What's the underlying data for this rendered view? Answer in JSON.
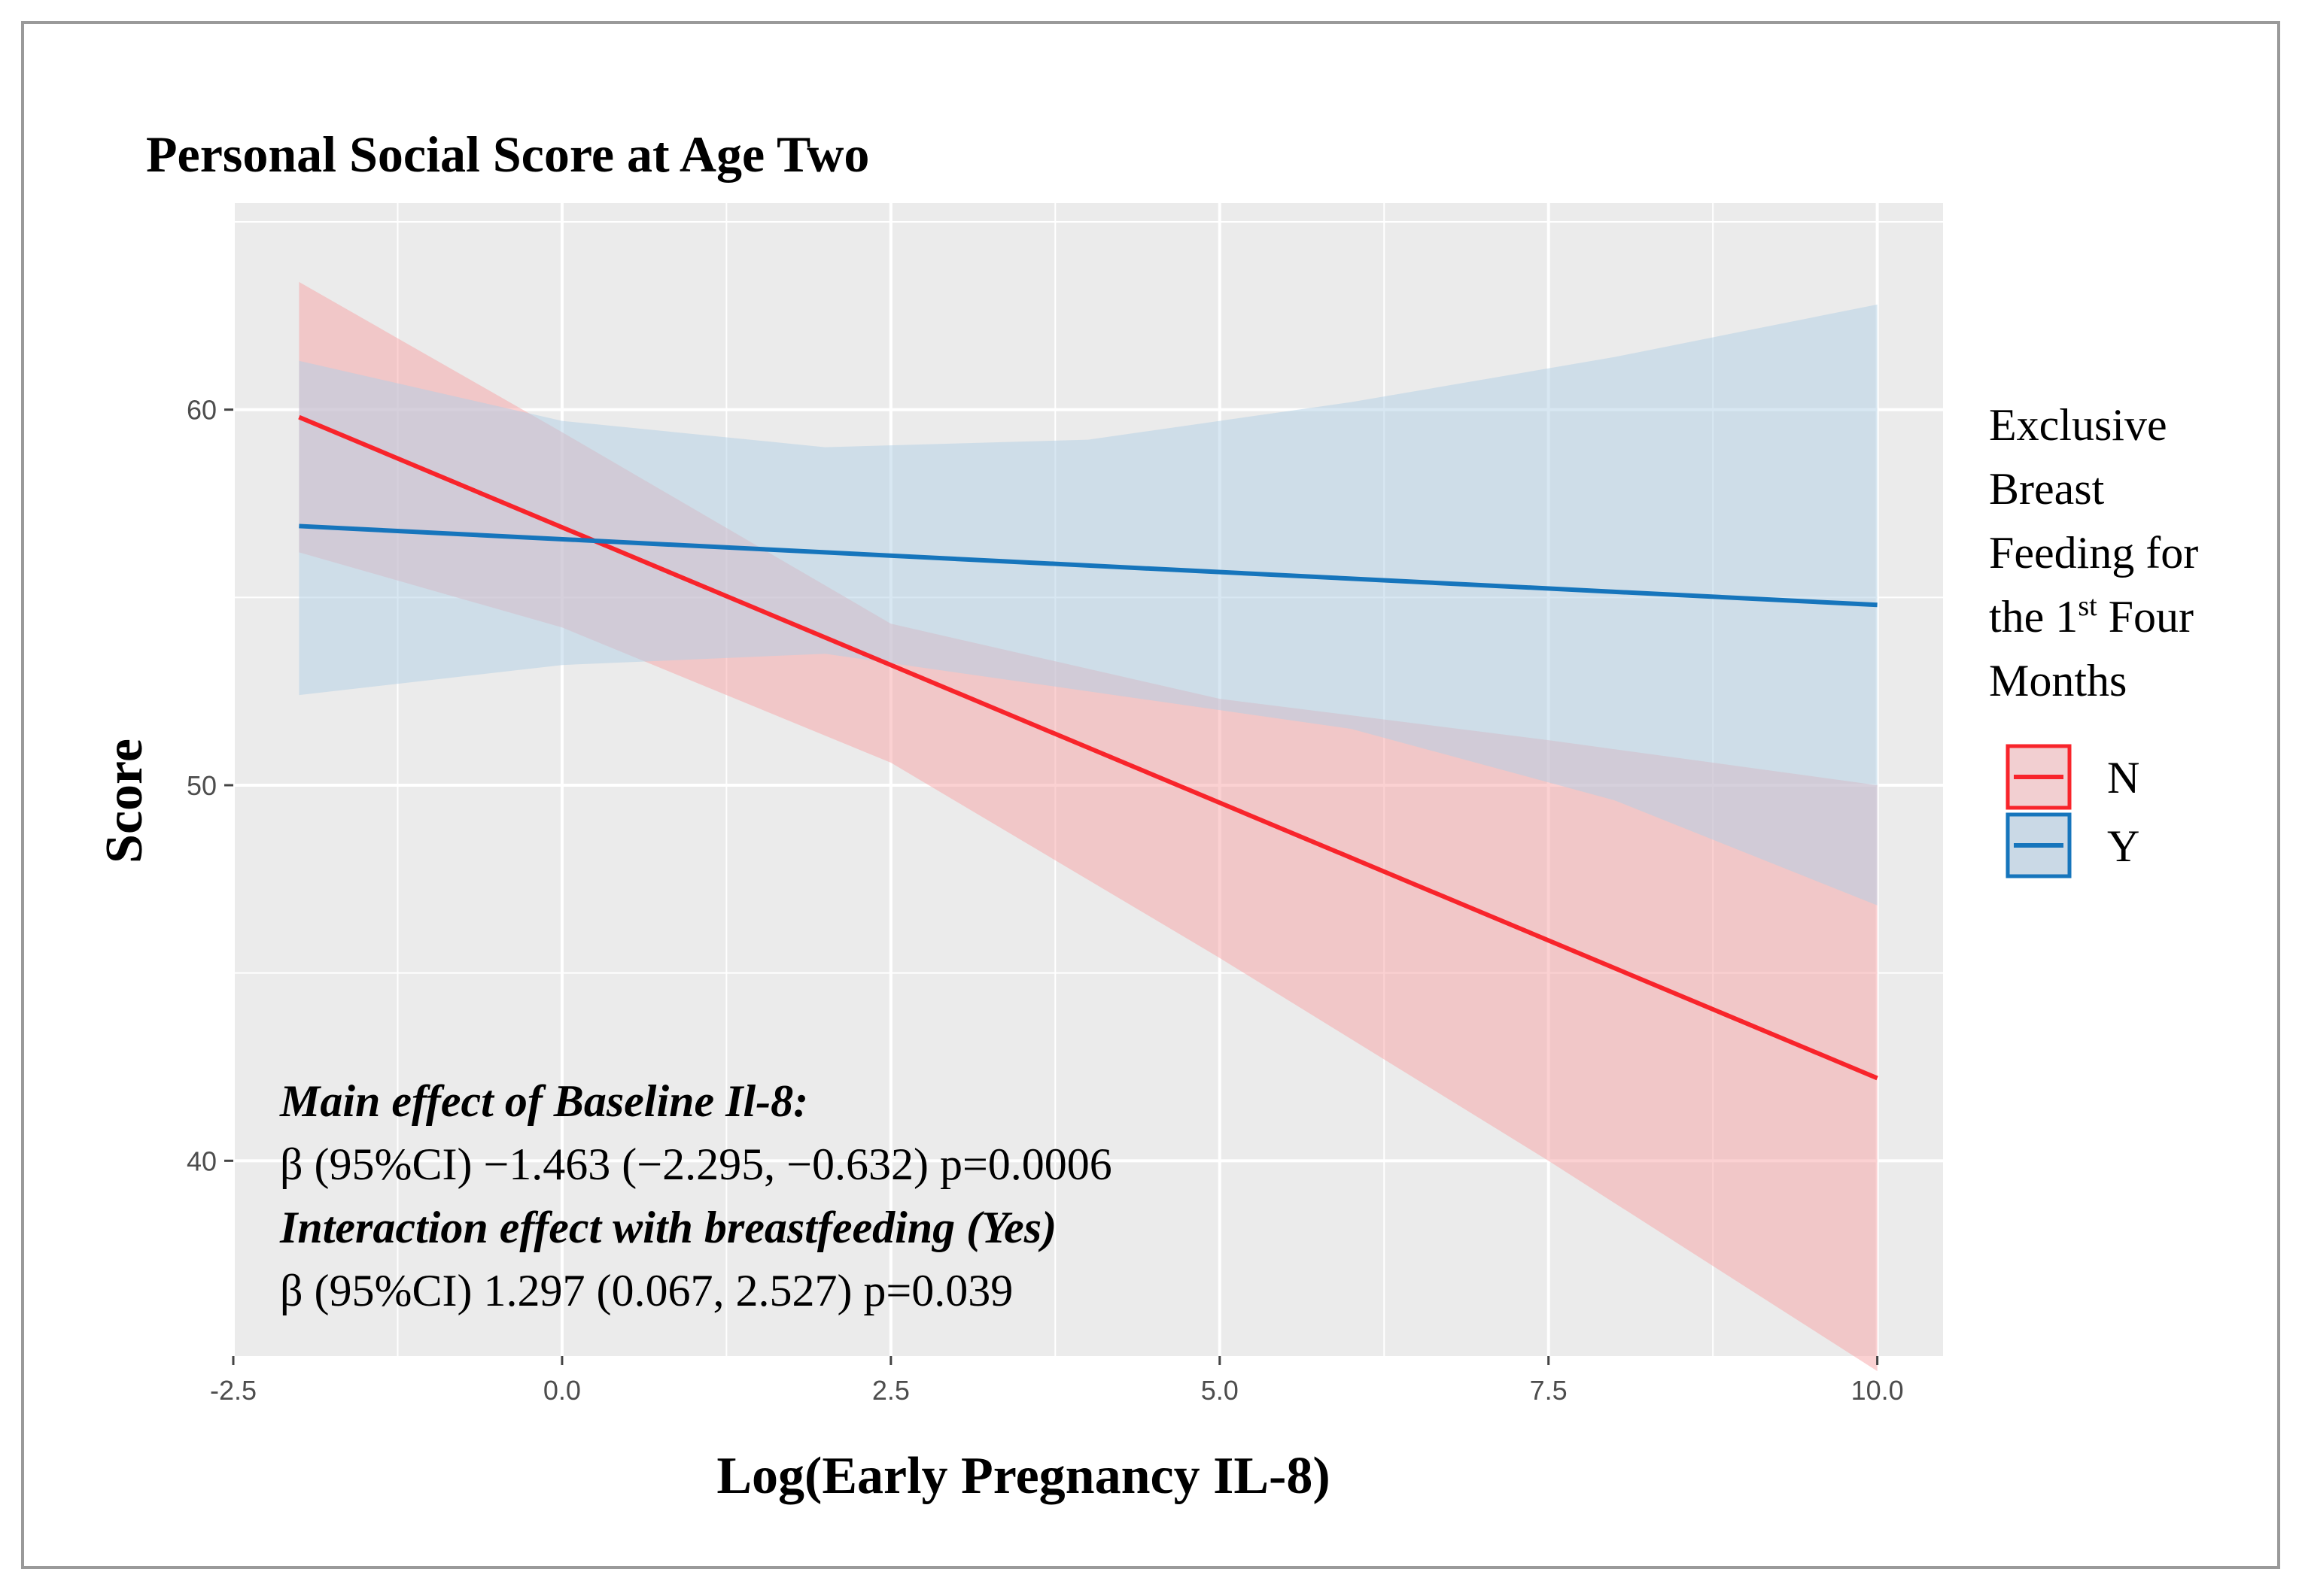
{
  "chart_data": {
    "type": "line",
    "title": "Personal Social Score at Age Two",
    "xlabel": "Log(Early Pregnancy IL-8)",
    "ylabel": "Score",
    "xlim": [
      -2.5,
      10.5
    ],
    "ylim": [
      34.8,
      65.5
    ],
    "grid": true,
    "x_ticks": [
      -2.5,
      0,
      2.5,
      5,
      7.5,
      10
    ],
    "x_tick_labels": [
      "-2.5",
      "0.0",
      "2.5",
      "5.0",
      "7.5",
      "10.0"
    ],
    "y_ticks": [
      40,
      50,
      60
    ],
    "y_tick_labels": [
      "40",
      "50",
      "60"
    ],
    "legend": {
      "title_lines": [
        "Exclusive",
        "Breast",
        "Feeding for",
        "the 1",
        "Four",
        "Months"
      ],
      "title_superscript": "st",
      "placement": "right"
    },
    "series": [
      {
        "name": "N",
        "color": "#f8242b",
        "fill": "#f8a3a6",
        "x": [
          -2,
          10
        ],
        "y": [
          59.8,
          42.2
        ],
        "ci_x": [
          -2,
          0,
          2.5,
          5,
          7.5,
          10
        ],
        "ci_lower": [
          56.2,
          54.2,
          50.6,
          45.4,
          40.0,
          34.4
        ],
        "ci_upper": [
          63.4,
          59.4,
          54.3,
          52.3,
          51.2,
          50.0
        ]
      },
      {
        "name": "Y",
        "color": "#1675bc",
        "fill": "#b1cfe6",
        "x": [
          -2,
          10
        ],
        "y": [
          56.9,
          54.8
        ],
        "ci_x": [
          -2,
          0,
          2,
          4,
          6,
          8,
          10
        ],
        "ci_lower": [
          52.4,
          53.2,
          53.5,
          52.5,
          51.5,
          49.6,
          46.8
        ],
        "ci_upper": [
          61.3,
          59.7,
          59.0,
          59.2,
          60.2,
          61.4,
          62.8
        ]
      }
    ],
    "annotations": [
      {
        "text": "Main effect of Baseline Il-8:",
        "style": "bold-italic"
      },
      {
        "text": "β (95%CI) −1.463 (−2.295, −0.632) p=0.0006",
        "style": "normal"
      },
      {
        "text": "Interaction effect with breastfeeding (Yes)",
        "style": "bold-italic"
      },
      {
        "text": "β (95%CI) 1.297 (0.067, 2.527) p=0.039",
        "style": "normal"
      }
    ]
  }
}
